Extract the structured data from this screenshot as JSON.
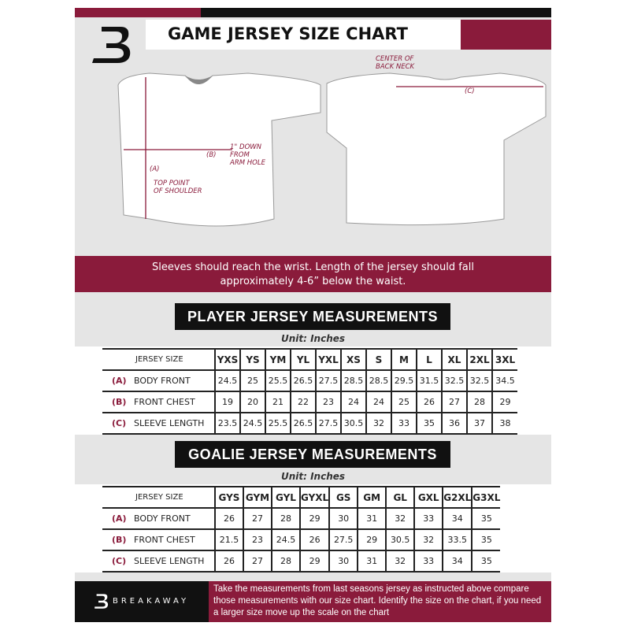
{
  "header": {
    "title": "GAME JERSEY SIZE CHART"
  },
  "colors": {
    "accent": "#8a1b3b",
    "dark": "#111111",
    "background": "#e5e5e5"
  },
  "diagram_labels": {
    "a": "(A)",
    "a_desc": "TOP POINT\nOF SHOULDER",
    "b": "(B)",
    "b_desc": "1\" DOWN\nFROM\nARM HOLE",
    "c": "(C)",
    "c_desc": "CENTER OF\nBACK NECK"
  },
  "banner": {
    "line1": "Sleeves should reach the wrist. Length of the jersey should fall",
    "line2": "approximately 4-6” below the waist."
  },
  "player": {
    "title": "PLAYER JERSEY MEASUREMENTS",
    "unit": "Unit: Inches",
    "header_label": "JERSEY SIZE",
    "sizes": [
      "YXS",
      "YS",
      "YM",
      "YL",
      "YXL",
      "XS",
      "S",
      "M",
      "L",
      "XL",
      "2XL",
      "3XL"
    ],
    "rows": [
      {
        "code": "(A)",
        "label": "BODY FRONT",
        "values": [
          "24.5",
          "25",
          "25.5",
          "26.5",
          "27.5",
          "28.5",
          "28.5",
          "29.5",
          "31.5",
          "32.5",
          "32.5",
          "34.5"
        ]
      },
      {
        "code": "(B)",
        "label": "FRONT CHEST",
        "values": [
          "19",
          "20",
          "21",
          "22",
          "23",
          "24",
          "24",
          "25",
          "26",
          "27",
          "28",
          "29"
        ]
      },
      {
        "code": "(C)",
        "label": "SLEEVE LENGTH",
        "values": [
          "23.5",
          "24.5",
          "25.5",
          "26.5",
          "27.5",
          "30.5",
          "32",
          "33",
          "35",
          "36",
          "37",
          "38"
        ]
      }
    ]
  },
  "goalie": {
    "title": "GOALIE JERSEY MEASUREMENTS",
    "unit": "Unit: Inches",
    "header_label": "JERSEY SIZE",
    "sizes": [
      "GYS",
      "GYM",
      "GYL",
      "GYXL",
      "GS",
      "GM",
      "GL",
      "GXL",
      "G2XL",
      "G3XL"
    ],
    "rows": [
      {
        "code": "(A)",
        "label": "BODY FRONT",
        "values": [
          "26",
          "27",
          "28",
          "29",
          "30",
          "31",
          "32",
          "33",
          "34",
          "35"
        ]
      },
      {
        "code": "(B)",
        "label": "FRONT CHEST",
        "values": [
          "21.5",
          "23",
          "24.5",
          "26",
          "27.5",
          "29",
          "30.5",
          "32",
          "33.5",
          "35"
        ]
      },
      {
        "code": "(C)",
        "label": "SLEEVE LENGTH",
        "values": [
          "26",
          "27",
          "28",
          "29",
          "30",
          "31",
          "32",
          "33",
          "34",
          "35"
        ]
      }
    ]
  },
  "footer": {
    "brand": "BREAKAWAY",
    "text": "Take the measurements from last seasons jersey as instructed above compare those measurements  with our size chart. Identify the size on the chart, if you need a larger size move up the scale on the chart"
  }
}
